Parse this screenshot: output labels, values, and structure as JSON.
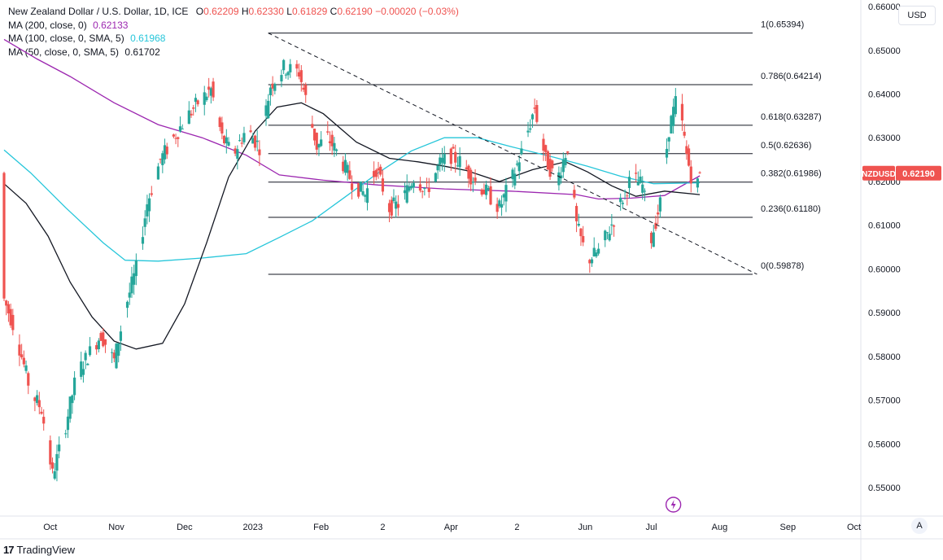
{
  "header": {
    "title": "New Zealand Dollar / U.S. Dollar, 1D, ICE",
    "o_label": "O",
    "o": "0.62209",
    "h_label": "H",
    "h": "0.62330",
    "l_label": "L",
    "l": "0.61829",
    "c_label": "C",
    "c": "0.62190",
    "change": "−0.00020 (−0.03%)",
    "ma200_label": "MA (200, close, 0)",
    "ma200": "0.62133",
    "ma100_label": "MA (100, close, 0, SMA, 5)",
    "ma100": "0.61968",
    "ma50_label": "MA (50, close, 0, SMA, 5)",
    "ma50": "0.61702"
  },
  "currency_button": "USD",
  "auto_button": "A",
  "footer": {
    "logo": "17",
    "brand": "TradingView"
  },
  "colors": {
    "up": "#26a69a",
    "down": "#ef5350",
    "ma200": "#9c27b0",
    "ma100": "#26c6da",
    "ma50": "#131722",
    "symbol_tag": "#ef5350"
  },
  "chart_data": {
    "type": "candlestick",
    "symbol": "NZDUSD",
    "last_price": "0.62190",
    "y_axis": {
      "min": 0.5435,
      "max": 0.6615,
      "ticks": [
        "0.66000",
        "0.65000",
        "0.64000",
        "0.63000",
        "0.62000",
        "0.61000",
        "0.60000",
        "0.59000",
        "0.58000",
        "0.57000",
        "0.56000",
        "0.55000"
      ]
    },
    "x_axis": {
      "labels": [
        "Oct",
        "Nov",
        "Dec",
        "2023",
        "Feb",
        "2",
        "Apr",
        "2",
        "Jun",
        "Jul",
        "Aug",
        "Sep",
        "Oct"
      ],
      "label_days": [
        21,
        51,
        82,
        113,
        144,
        172,
        203,
        233,
        264,
        294,
        325,
        356,
        386
      ]
    },
    "fibonacci": [
      {
        "label": "1(0.65394)",
        "value": 0.65394
      },
      {
        "label": "0.786(0.64214)",
        "value": 0.64214
      },
      {
        "label": "0.618(0.63287)",
        "value": 0.63287
      },
      {
        "label": "0.5(0.62636)",
        "value": 0.62636
      },
      {
        "label": "0.382(0.61986)",
        "value": 0.61986
      },
      {
        "label": "0.236(0.61180)",
        "value": 0.6118
      },
      {
        "label": "0(0.59878)",
        "value": 0.59878
      }
    ],
    "fib_start_day": 120,
    "fib_end_day": 340,
    "trendline": {
      "start_day": 120,
      "start_value": 0.65394,
      "end_day": 342,
      "end_value": 0.59878
    },
    "anchors": [
      [
        0,
        0.593
      ],
      [
        5,
        0.586
      ],
      [
        12,
        0.572
      ],
      [
        17,
        0.568
      ],
      [
        22,
        0.553
      ],
      [
        27,
        0.562
      ],
      [
        33,
        0.576
      ],
      [
        39,
        0.581
      ],
      [
        44,
        0.585
      ],
      [
        50,
        0.579
      ],
      [
        55,
        0.591
      ],
      [
        60,
        0.6
      ],
      [
        65,
        0.615
      ],
      [
        71,
        0.625
      ],
      [
        77,
        0.63
      ],
      [
        82,
        0.634
      ],
      [
        88,
        0.638
      ],
      [
        94,
        0.641
      ],
      [
        99,
        0.63
      ],
      [
        104,
        0.626
      ],
      [
        110,
        0.632
      ],
      [
        116,
        0.628
      ],
      [
        121,
        0.642
      ],
      [
        127,
        0.646
      ],
      [
        134,
        0.645
      ],
      [
        138,
        0.637
      ],
      [
        142,
        0.628
      ],
      [
        147,
        0.63
      ],
      [
        152,
        0.626
      ],
      [
        158,
        0.62
      ],
      [
        164,
        0.617
      ],
      [
        169,
        0.623
      ],
      [
        175,
        0.614
      ],
      [
        180,
        0.615
      ],
      [
        186,
        0.621
      ],
      [
        192,
        0.618
      ],
      [
        198,
        0.624
      ],
      [
        203,
        0.626
      ],
      [
        208,
        0.624
      ],
      [
        214,
        0.62
      ],
      [
        220,
        0.617
      ],
      [
        225,
        0.614
      ],
      [
        231,
        0.621
      ],
      [
        236,
        0.628
      ],
      [
        241,
        0.637
      ],
      [
        246,
        0.625
      ],
      [
        251,
        0.62
      ],
      [
        256,
        0.628
      ],
      [
        260,
        0.61
      ],
      [
        265,
        0.602
      ],
      [
        270,
        0.604
      ],
      [
        275,
        0.609
      ],
      [
        280,
        0.615
      ],
      [
        285,
        0.621
      ],
      [
        290,
        0.619
      ],
      [
        294,
        0.607
      ],
      [
        298,
        0.615
      ],
      [
        302,
        0.632
      ],
      [
        306,
        0.64
      ],
      [
        310,
        0.626
      ],
      [
        314,
        0.617
      ],
      [
        316,
        0.622
      ]
    ],
    "ma200_points": [
      [
        0,
        0.6525
      ],
      [
        15,
        0.648
      ],
      [
        30,
        0.644
      ],
      [
        50,
        0.638
      ],
      [
        70,
        0.633
      ],
      [
        90,
        0.63
      ],
      [
        110,
        0.626
      ],
      [
        125,
        0.6215
      ],
      [
        145,
        0.6203
      ],
      [
        170,
        0.6192
      ],
      [
        200,
        0.6183
      ],
      [
        230,
        0.6178
      ],
      [
        260,
        0.617
      ],
      [
        270,
        0.616
      ],
      [
        285,
        0.6162
      ],
      [
        300,
        0.6168
      ],
      [
        316,
        0.6213
      ]
    ],
    "ma100_points": [
      [
        0,
        0.6272
      ],
      [
        12,
        0.622
      ],
      [
        28,
        0.614
      ],
      [
        45,
        0.606
      ],
      [
        55,
        0.602
      ],
      [
        70,
        0.6018
      ],
      [
        90,
        0.6025
      ],
      [
        110,
        0.6035
      ],
      [
        125,
        0.6072
      ],
      [
        140,
        0.611
      ],
      [
        155,
        0.6165
      ],
      [
        170,
        0.622
      ],
      [
        185,
        0.627
      ],
      [
        200,
        0.63
      ],
      [
        215,
        0.63
      ],
      [
        230,
        0.628
      ],
      [
        250,
        0.6255
      ],
      [
        265,
        0.6235
      ],
      [
        280,
        0.6212
      ],
      [
        295,
        0.6195
      ],
      [
        316,
        0.6197
      ]
    ],
    "ma50_points": [
      [
        0,
        0.6195
      ],
      [
        10,
        0.615
      ],
      [
        20,
        0.6075
      ],
      [
        30,
        0.597
      ],
      [
        40,
        0.589
      ],
      [
        50,
        0.5835
      ],
      [
        60,
        0.5817
      ],
      [
        72,
        0.583
      ],
      [
        82,
        0.592
      ],
      [
        92,
        0.606
      ],
      [
        102,
        0.621
      ],
      [
        114,
        0.6315
      ],
      [
        124,
        0.637
      ],
      [
        135,
        0.638
      ],
      [
        145,
        0.6355
      ],
      [
        160,
        0.629
      ],
      [
        175,
        0.6253
      ],
      [
        188,
        0.6245
      ],
      [
        200,
        0.6235
      ],
      [
        210,
        0.6225
      ],
      [
        225,
        0.62
      ],
      [
        240,
        0.6227
      ],
      [
        255,
        0.6245
      ],
      [
        265,
        0.6222
      ],
      [
        276,
        0.619
      ],
      [
        287,
        0.6166
      ],
      [
        300,
        0.6178
      ],
      [
        316,
        0.617
      ]
    ]
  }
}
